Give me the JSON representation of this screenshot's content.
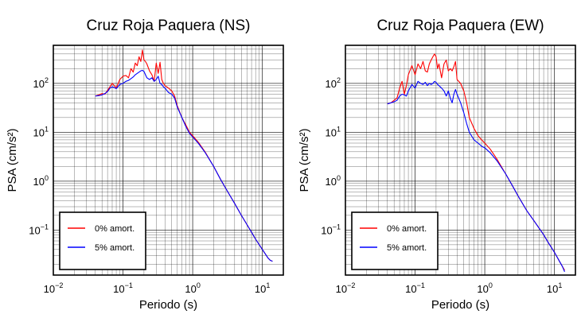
{
  "chart_data": [
    {
      "type": "line",
      "title": "Cruz Roja Paquera (NS)",
      "xlabel": "Periodo (s)",
      "ylabel": "PSA (cm/s²)",
      "xscale": "log",
      "yscale": "log",
      "xlim": [
        0.01,
        20
      ],
      "ylim": [
        0.012,
        600
      ],
      "grid": true,
      "legend_position": "bottom-left",
      "xticks": [
        {
          "base": "10",
          "exp": "−2"
        },
        {
          "base": "10",
          "exp": "−1"
        },
        {
          "base": "10",
          "exp": "0"
        },
        {
          "base": "10",
          "exp": "1"
        }
      ],
      "yticks": [
        {
          "base": "10",
          "exp": "−1"
        },
        {
          "base": "10",
          "exp": "0"
        },
        {
          "base": "10",
          "exp": "1"
        },
        {
          "base": "10",
          "exp": "2"
        }
      ],
      "series": [
        {
          "name": "0% amort.",
          "color": "#ff0000",
          "x": [
            0.04,
            0.045,
            0.05,
            0.055,
            0.06,
            0.065,
            0.07,
            0.075,
            0.08,
            0.09,
            0.1,
            0.11,
            0.12,
            0.13,
            0.14,
            0.15,
            0.16,
            0.17,
            0.18,
            0.19,
            0.2,
            0.21,
            0.22,
            0.24,
            0.26,
            0.28,
            0.3,
            0.32,
            0.34,
            0.36,
            0.38,
            0.4,
            0.45,
            0.5,
            0.55,
            0.6,
            0.7,
            0.8,
            0.9,
            1.0,
            1.2,
            1.5,
            2.0,
            2.5,
            3.0,
            4.0,
            5.0,
            6.0,
            7.0,
            8.0,
            10.0,
            12.0,
            13.0,
            14.0
          ],
          "y": [
            55,
            58,
            62,
            60,
            72,
            85,
            100,
            90,
            80,
            120,
            140,
            145,
            130,
            200,
            170,
            260,
            230,
            350,
            280,
            480,
            300,
            280,
            250,
            180,
            150,
            110,
            260,
            160,
            270,
            120,
            100,
            90,
            80,
            70,
            55,
            35,
            20,
            14,
            10,
            8.5,
            6.3,
            4.0,
            2.0,
            1.1,
            0.7,
            0.35,
            0.2,
            0.13,
            0.09,
            0.065,
            0.04,
            0.027,
            0.024,
            0.023
          ]
        },
        {
          "name": "5% amort.",
          "color": "#0000ff",
          "x": [
            0.04,
            0.045,
            0.05,
            0.055,
            0.06,
            0.065,
            0.07,
            0.075,
            0.08,
            0.09,
            0.1,
            0.11,
            0.12,
            0.13,
            0.14,
            0.15,
            0.16,
            0.17,
            0.18,
            0.19,
            0.2,
            0.21,
            0.22,
            0.24,
            0.26,
            0.28,
            0.3,
            0.32,
            0.34,
            0.36,
            0.38,
            0.4,
            0.45,
            0.5,
            0.55,
            0.6,
            0.7,
            0.8,
            0.9,
            1.0,
            1.2,
            1.5,
            2.0,
            2.5,
            3.0,
            4.0,
            5.0,
            6.0,
            7.0,
            8.0,
            10.0,
            12.0,
            13.0,
            14.0
          ],
          "y": [
            55,
            56,
            58,
            62,
            68,
            80,
            85,
            82,
            78,
            95,
            100,
            110,
            115,
            125,
            135,
            150,
            160,
            170,
            180,
            185,
            175,
            150,
            130,
            120,
            130,
            110,
            120,
            140,
            100,
            95,
            85,
            80,
            65,
            60,
            50,
            33,
            20,
            13,
            9.5,
            8.0,
            6.0,
            3.9,
            2.0,
            1.1,
            0.7,
            0.35,
            0.2,
            0.13,
            0.09,
            0.065,
            0.04,
            0.027,
            0.024,
            0.023
          ]
        }
      ]
    },
    {
      "type": "line",
      "title": "Cruz Roja Paquera (EW)",
      "xlabel": "Periodo (s)",
      "ylabel": "PSA (cm/s²)",
      "xscale": "log",
      "yscale": "log",
      "xlim": [
        0.01,
        20
      ],
      "ylim": [
        0.012,
        600
      ],
      "grid": true,
      "legend_position": "bottom-left",
      "xticks": [
        {
          "base": "10",
          "exp": "−2"
        },
        {
          "base": "10",
          "exp": "−1"
        },
        {
          "base": "10",
          "exp": "0"
        },
        {
          "base": "10",
          "exp": "1"
        }
      ],
      "yticks": [
        {
          "base": "10",
          "exp": "−1"
        },
        {
          "base": "10",
          "exp": "0"
        },
        {
          "base": "10",
          "exp": "1"
        },
        {
          "base": "10",
          "exp": "2"
        }
      ],
      "series": [
        {
          "name": "0% amort.",
          "color": "#ff0000",
          "x": [
            0.04,
            0.045,
            0.05,
            0.055,
            0.06,
            0.065,
            0.07,
            0.075,
            0.08,
            0.09,
            0.1,
            0.11,
            0.12,
            0.13,
            0.14,
            0.15,
            0.16,
            0.17,
            0.18,
            0.19,
            0.2,
            0.21,
            0.22,
            0.24,
            0.26,
            0.28,
            0.3,
            0.32,
            0.34,
            0.36,
            0.38,
            0.4,
            0.45,
            0.5,
            0.55,
            0.6,
            0.7,
            0.8,
            0.9,
            1.0,
            1.2,
            1.5,
            2.0,
            2.5,
            3.0,
            4.0,
            5.0,
            6.0,
            7.0,
            8.0,
            10.0,
            12.0,
            13.0,
            14.0
          ],
          "y": [
            38,
            40,
            45,
            50,
            80,
            110,
            60,
            90,
            150,
            230,
            150,
            250,
            200,
            280,
            180,
            170,
            250,
            300,
            350,
            400,
            350,
            200,
            250,
            130,
            250,
            300,
            180,
            200,
            180,
            220,
            280,
            120,
            100,
            70,
            40,
            20,
            12,
            8.5,
            7,
            6,
            4.5,
            2.8,
            1.4,
            0.8,
            0.5,
            0.25,
            0.16,
            0.11,
            0.08,
            0.058,
            0.035,
            0.022,
            0.018,
            0.015
          ]
        },
        {
          "name": "5% amort.",
          "color": "#0000ff",
          "x": [
            0.04,
            0.045,
            0.05,
            0.055,
            0.06,
            0.065,
            0.07,
            0.075,
            0.08,
            0.09,
            0.1,
            0.11,
            0.12,
            0.13,
            0.14,
            0.15,
            0.16,
            0.17,
            0.18,
            0.19,
            0.2,
            0.21,
            0.22,
            0.24,
            0.26,
            0.28,
            0.3,
            0.32,
            0.34,
            0.36,
            0.38,
            0.4,
            0.45,
            0.5,
            0.55,
            0.6,
            0.7,
            0.8,
            0.9,
            1.0,
            1.2,
            1.5,
            2.0,
            2.5,
            3.0,
            4.0,
            5.0,
            6.0,
            7.0,
            8.0,
            10.0,
            12.0,
            13.0,
            14.0
          ],
          "y": [
            38,
            40,
            42,
            45,
            55,
            60,
            58,
            55,
            70,
            95,
            80,
            110,
            100,
            95,
            105,
            90,
            100,
            95,
            100,
            110,
            105,
            95,
            90,
            80,
            70,
            55,
            70,
            50,
            40,
            60,
            75,
            60,
            40,
            25,
            15,
            10,
            7,
            6,
            5.2,
            4.8,
            3.8,
            2.6,
            1.4,
            0.8,
            0.5,
            0.25,
            0.16,
            0.11,
            0.08,
            0.058,
            0.035,
            0.022,
            0.018,
            0.014
          ]
        }
      ]
    }
  ]
}
